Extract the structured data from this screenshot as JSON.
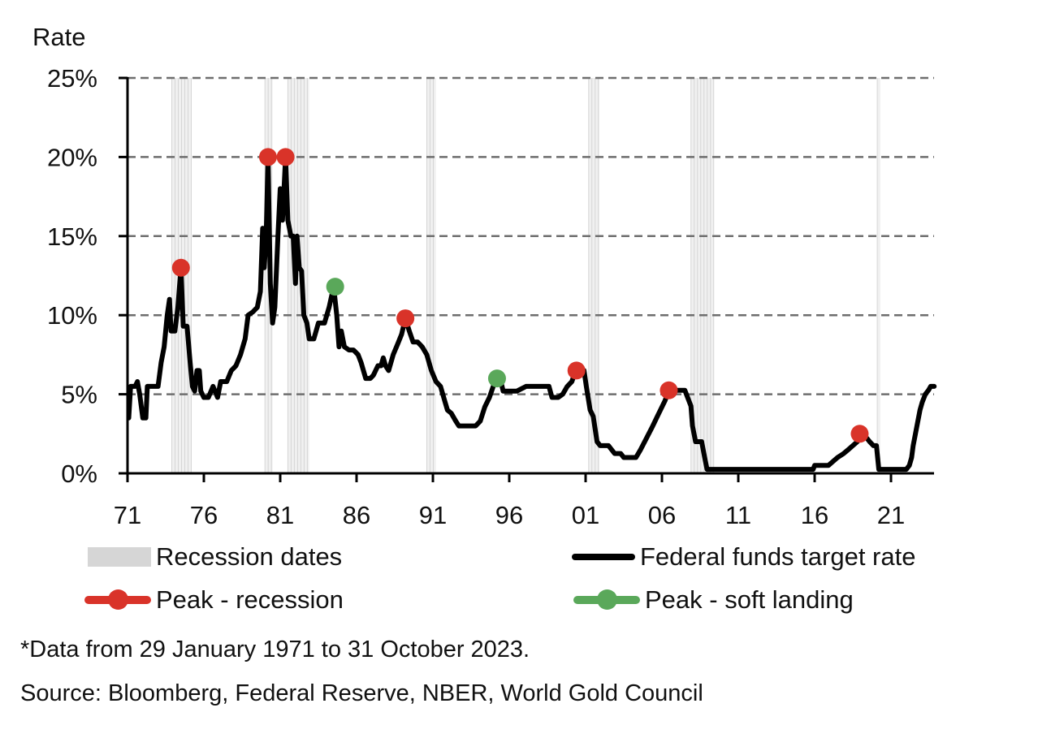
{
  "chart_data": {
    "type": "line",
    "title": "",
    "ylabel": "Rate",
    "xlabel": "",
    "xlim": [
      1971,
      2023.83
    ],
    "ylim": [
      0,
      25
    ],
    "yticks": [
      0,
      5,
      10,
      15,
      20,
      25
    ],
    "ytick_labels": [
      "0%",
      "5%",
      "10%",
      "15%",
      "20%",
      "25%"
    ],
    "xticks": [
      1971,
      1976,
      1981,
      1986,
      1991,
      1996,
      2001,
      2006,
      2011,
      2016,
      2021
    ],
    "xtick_labels": [
      "71",
      "76",
      "81",
      "86",
      "91",
      "96",
      "01",
      "06",
      "11",
      "16",
      "21"
    ],
    "grid": "horizontal-dashed",
    "legend_placement": "bottom",
    "colors": {
      "line": "#000000",
      "peak_recession": "#d93329",
      "peak_soft_landing": "#5aa85a",
      "recession_band": "#d6d6d6",
      "grid": "#6e6e6e"
    },
    "recessions": [
      {
        "start": 1973.9,
        "end": 1975.2
      },
      {
        "start": 1980.0,
        "end": 1980.5
      },
      {
        "start": 1981.5,
        "end": 1982.9
      },
      {
        "start": 1990.6,
        "end": 1991.2
      },
      {
        "start": 2001.2,
        "end": 2001.9
      },
      {
        "start": 2007.9,
        "end": 2009.4
      },
      {
        "start": 2020.1,
        "end": 2020.3
      }
    ],
    "series": [
      {
        "name": "Federal funds target rate",
        "points": [
          [
            1971.08,
            3.5
          ],
          [
            1971.2,
            5.5
          ],
          [
            1971.5,
            5.5
          ],
          [
            1971.65,
            5.8
          ],
          [
            1971.8,
            5.0
          ],
          [
            1972.0,
            3.5
          ],
          [
            1972.2,
            3.5
          ],
          [
            1972.3,
            5.5
          ],
          [
            1972.6,
            5.5
          ],
          [
            1973.0,
            5.5
          ],
          [
            1973.2,
            7.0
          ],
          [
            1973.4,
            8.0
          ],
          [
            1973.6,
            10.0
          ],
          [
            1973.75,
            11.0
          ],
          [
            1973.85,
            9.0
          ],
          [
            1974.1,
            9.0
          ],
          [
            1974.3,
            10.5
          ],
          [
            1974.5,
            13.0
          ],
          [
            1974.65,
            9.3
          ],
          [
            1974.9,
            9.3
          ],
          [
            1975.1,
            7.0
          ],
          [
            1975.25,
            5.5
          ],
          [
            1975.4,
            5.2
          ],
          [
            1975.55,
            6.5
          ],
          [
            1975.7,
            6.5
          ],
          [
            1975.8,
            5.2
          ],
          [
            1976.0,
            4.8
          ],
          [
            1976.3,
            4.8
          ],
          [
            1976.6,
            5.5
          ],
          [
            1976.9,
            4.8
          ],
          [
            1977.1,
            5.8
          ],
          [
            1977.5,
            5.8
          ],
          [
            1977.8,
            6.5
          ],
          [
            1978.1,
            6.8
          ],
          [
            1978.4,
            7.5
          ],
          [
            1978.7,
            8.5
          ],
          [
            1978.9,
            10.0
          ],
          [
            1979.2,
            10.2
          ],
          [
            1979.5,
            10.5
          ],
          [
            1979.7,
            11.5
          ],
          [
            1979.85,
            15.5
          ],
          [
            1979.95,
            13.0
          ],
          [
            1980.08,
            15.0
          ],
          [
            1980.2,
            20.0
          ],
          [
            1980.35,
            12.0
          ],
          [
            1980.5,
            9.5
          ],
          [
            1980.65,
            10.5
          ],
          [
            1980.85,
            15.0
          ],
          [
            1981.0,
            18.0
          ],
          [
            1981.15,
            16.0
          ],
          [
            1981.35,
            20.0
          ],
          [
            1981.5,
            16.0
          ],
          [
            1981.7,
            15.0
          ],
          [
            1981.85,
            15.0
          ],
          [
            1982.0,
            12.0
          ],
          [
            1982.1,
            15.0
          ],
          [
            1982.25,
            13.0
          ],
          [
            1982.4,
            12.8
          ],
          [
            1982.55,
            10.0
          ],
          [
            1982.75,
            9.5
          ],
          [
            1982.9,
            8.5
          ],
          [
            1983.2,
            8.5
          ],
          [
            1983.5,
            9.5
          ],
          [
            1983.9,
            9.5
          ],
          [
            1984.2,
            10.5
          ],
          [
            1984.5,
            11.8
          ],
          [
            1984.7,
            10.0
          ],
          [
            1984.85,
            8.0
          ],
          [
            1985.0,
            9.0
          ],
          [
            1985.2,
            8.0
          ],
          [
            1985.5,
            7.8
          ],
          [
            1985.8,
            7.8
          ],
          [
            1986.1,
            7.5
          ],
          [
            1986.3,
            7.0
          ],
          [
            1986.6,
            6.0
          ],
          [
            1986.9,
            6.0
          ],
          [
            1987.1,
            6.2
          ],
          [
            1987.4,
            6.8
          ],
          [
            1987.6,
            6.8
          ],
          [
            1987.75,
            7.3
          ],
          [
            1987.9,
            6.8
          ],
          [
            1988.1,
            6.5
          ],
          [
            1988.4,
            7.5
          ],
          [
            1988.7,
            8.2
          ],
          [
            1988.95,
            8.8
          ],
          [
            1989.2,
            9.8
          ],
          [
            1989.45,
            9.0
          ],
          [
            1989.7,
            8.3
          ],
          [
            1990.0,
            8.3
          ],
          [
            1990.3,
            8.0
          ],
          [
            1990.6,
            7.5
          ],
          [
            1990.9,
            6.5
          ],
          [
            1991.2,
            5.8
          ],
          [
            1991.5,
            5.5
          ],
          [
            1991.8,
            4.5
          ],
          [
            1991.95,
            4.0
          ],
          [
            1992.2,
            3.8
          ],
          [
            1992.5,
            3.3
          ],
          [
            1992.7,
            3.0
          ],
          [
            1993.3,
            3.0
          ],
          [
            1993.8,
            3.0
          ],
          [
            1994.1,
            3.3
          ],
          [
            1994.4,
            4.2
          ],
          [
            1994.7,
            4.8
          ],
          [
            1994.95,
            5.5
          ],
          [
            1995.2,
            6.0
          ],
          [
            1995.45,
            5.8
          ],
          [
            1995.6,
            5.2
          ],
          [
            1996.0,
            5.2
          ],
          [
            1996.5,
            5.2
          ],
          [
            1997.1,
            5.5
          ],
          [
            1997.6,
            5.5
          ],
          [
            1998.3,
            5.5
          ],
          [
            1998.6,
            5.5
          ],
          [
            1998.8,
            4.8
          ],
          [
            1999.2,
            4.8
          ],
          [
            1999.5,
            5.0
          ],
          [
            1999.8,
            5.5
          ],
          [
            2000.1,
            5.8
          ],
          [
            2000.35,
            6.5
          ],
          [
            2000.6,
            6.5
          ],
          [
            2000.9,
            6.5
          ],
          [
            2001.05,
            5.5
          ],
          [
            2001.3,
            4.0
          ],
          [
            2001.5,
            3.6
          ],
          [
            2001.75,
            2.0
          ],
          [
            2001.95,
            1.75
          ],
          [
            2002.5,
            1.75
          ],
          [
            2002.9,
            1.25
          ],
          [
            2003.3,
            1.25
          ],
          [
            2003.5,
            1.0
          ],
          [
            2004.3,
            1.0
          ],
          [
            2004.6,
            1.5
          ],
          [
            2005.0,
            2.25
          ],
          [
            2005.4,
            3.0
          ],
          [
            2005.8,
            3.8
          ],
          [
            2006.2,
            4.6
          ],
          [
            2006.45,
            5.25
          ],
          [
            2006.8,
            5.25
          ],
          [
            2007.5,
            5.25
          ],
          [
            2007.7,
            4.75
          ],
          [
            2007.9,
            4.25
          ],
          [
            2008.0,
            3.0
          ],
          [
            2008.2,
            2.0
          ],
          [
            2008.6,
            2.0
          ],
          [
            2008.8,
            1.0
          ],
          [
            2008.95,
            0.25
          ],
          [
            2010.0,
            0.25
          ],
          [
            2012.0,
            0.25
          ],
          [
            2014.0,
            0.25
          ],
          [
            2015.9,
            0.25
          ],
          [
            2016.0,
            0.5
          ],
          [
            2016.9,
            0.5
          ],
          [
            2017.2,
            0.75
          ],
          [
            2017.5,
            1.0
          ],
          [
            2017.9,
            1.25
          ],
          [
            2018.2,
            1.5
          ],
          [
            2018.5,
            1.75
          ],
          [
            2018.8,
            2.0
          ],
          [
            2019.0,
            2.5
          ],
          [
            2019.4,
            2.25
          ],
          [
            2019.6,
            2.0
          ],
          [
            2019.85,
            1.75
          ],
          [
            2020.05,
            1.75
          ],
          [
            2020.2,
            0.25
          ],
          [
            2021.0,
            0.25
          ],
          [
            2022.0,
            0.25
          ],
          [
            2022.2,
            0.5
          ],
          [
            2022.35,
            1.0
          ],
          [
            2022.45,
            1.75
          ],
          [
            2022.6,
            2.5
          ],
          [
            2022.75,
            3.25
          ],
          [
            2022.9,
            4.0
          ],
          [
            2023.05,
            4.5
          ],
          [
            2023.25,
            5.0
          ],
          [
            2023.45,
            5.25
          ],
          [
            2023.6,
            5.5
          ],
          [
            2023.83,
            5.5
          ]
        ]
      }
    ],
    "peaks": [
      {
        "year": 1974.5,
        "rate": 13.0,
        "kind": "recession"
      },
      {
        "year": 1980.2,
        "rate": 20.0,
        "kind": "recession"
      },
      {
        "year": 1981.35,
        "rate": 20.0,
        "kind": "recession"
      },
      {
        "year": 1984.6,
        "rate": 11.8,
        "kind": "soft-landing"
      },
      {
        "year": 1989.2,
        "rate": 9.8,
        "kind": "recession"
      },
      {
        "year": 1995.2,
        "rate": 6.0,
        "kind": "soft-landing"
      },
      {
        "year": 2000.4,
        "rate": 6.5,
        "kind": "recession"
      },
      {
        "year": 2006.45,
        "rate": 5.25,
        "kind": "recession"
      },
      {
        "year": 2018.95,
        "rate": 2.5,
        "kind": "recession"
      }
    ],
    "legend": [
      {
        "key": "recession",
        "label": "Recession dates"
      },
      {
        "key": "line",
        "label": "Federal funds target rate"
      },
      {
        "key": "peak_recession",
        "label": "Peak - recession"
      },
      {
        "key": "peak_soft",
        "label": "Peak - soft landing"
      }
    ]
  },
  "footnotes": {
    "data_note": "*Data from 29 January 1971 to 31 October 2023.",
    "source": "Source: Bloomberg, Federal Reserve, NBER, World Gold Council"
  }
}
